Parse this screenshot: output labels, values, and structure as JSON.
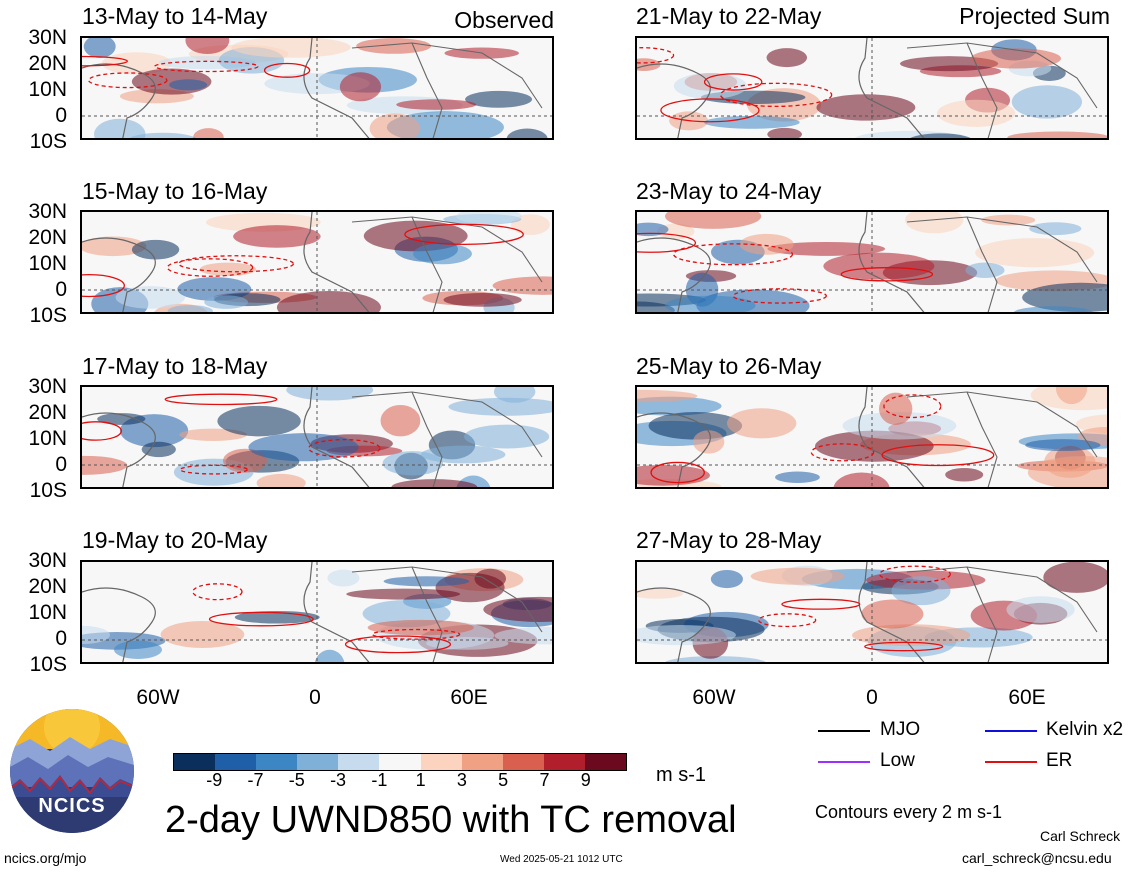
{
  "lat_labels": [
    "30N",
    "20N",
    "10N",
    "0",
    "10S"
  ],
  "lon_labels": [
    "60W",
    "0",
    "60E"
  ],
  "panels_left": [
    {
      "date": "13-May to 14-May",
      "tag": "Observed"
    },
    {
      "date": "15-May to 16-May",
      "tag": ""
    },
    {
      "date": "17-May to 18-May",
      "tag": ""
    },
    {
      "date": "19-May to 20-May",
      "tag": ""
    }
  ],
  "panels_right": [
    {
      "date": "21-May to 22-May",
      "tag": "Projected Sum"
    },
    {
      "date": "23-May to 24-May",
      "tag": ""
    },
    {
      "date": "25-May to 26-May",
      "tag": ""
    },
    {
      "date": "27-May to 28-May",
      "tag": ""
    }
  ],
  "colorbar": {
    "ticks": [
      "-9",
      "-7",
      "-5",
      "-3",
      "-1",
      "1",
      "3",
      "5",
      "7",
      "9"
    ],
    "colors": [
      "#0a2f5c",
      "#1f5fa8",
      "#3d86c4",
      "#7fb1d8",
      "#c6dcee",
      "#f7f7f7",
      "#fbd3be",
      "#f1a183",
      "#d9604f",
      "#b01f2b",
      "#6b0a1e"
    ],
    "unit": "m s-1"
  },
  "title": "2-day UWND850 with TC removal",
  "legend": {
    "items": [
      {
        "label": "MJO",
        "color": "#000000"
      },
      {
        "label": "Kelvin x2",
        "color": "#1010dd"
      },
      {
        "label": "Low",
        "color": "#9b30ff"
      },
      {
        "label": "ER",
        "color": "#e01010"
      }
    ],
    "contour_note": "Contours every 2 m s-1"
  },
  "logo_text": "NCICS",
  "footer": {
    "url": "ncics.org/mjo",
    "timestamp": "Wed 2025-05-21 1012 UTC",
    "author": "Carl Schreck",
    "email": "carl_schreck@ncsu.edu"
  }
}
